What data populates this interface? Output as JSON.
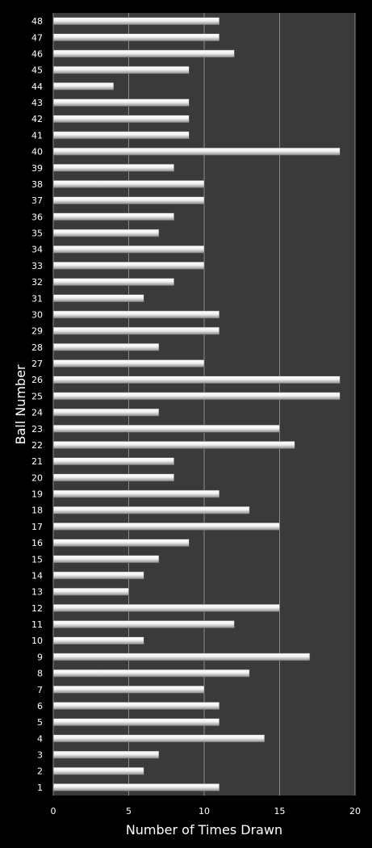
{
  "chart_data": {
    "type": "bar",
    "orientation": "horizontal",
    "title": "",
    "xlabel": "Number of Times Drawn",
    "ylabel": "Ball Number",
    "xlim": [
      0,
      20
    ],
    "xticks": [
      0,
      5,
      10,
      15,
      20
    ],
    "grid": "vertical",
    "legend": "none",
    "colors": {
      "background": "#000000",
      "plot_area": "#3a3a3a",
      "bar": "#eeeeee",
      "bar_shade": "#9a9a9a",
      "grid": "#8a8a8a"
    },
    "categories": [
      "1",
      "2",
      "3",
      "4",
      "5",
      "6",
      "7",
      "8",
      "9",
      "10",
      "11",
      "12",
      "13",
      "14",
      "15",
      "16",
      "17",
      "18",
      "19",
      "20",
      "21",
      "22",
      "23",
      "24",
      "25",
      "26",
      "27",
      "28",
      "29",
      "30",
      "31",
      "32",
      "33",
      "34",
      "35",
      "36",
      "37",
      "38",
      "39",
      "40",
      "41",
      "42",
      "43",
      "44",
      "45",
      "46",
      "47",
      "48"
    ],
    "values": [
      11,
      6,
      7,
      14,
      11,
      11,
      10,
      13,
      17,
      6,
      12,
      15,
      5,
      6,
      7,
      9,
      15,
      13,
      11,
      8,
      8,
      16,
      15,
      7,
      19,
      19,
      10,
      7,
      11,
      11,
      6,
      8,
      10,
      10,
      7,
      8,
      10,
      10,
      8,
      19,
      9,
      9,
      9,
      4,
      9,
      12,
      11,
      11
    ]
  }
}
